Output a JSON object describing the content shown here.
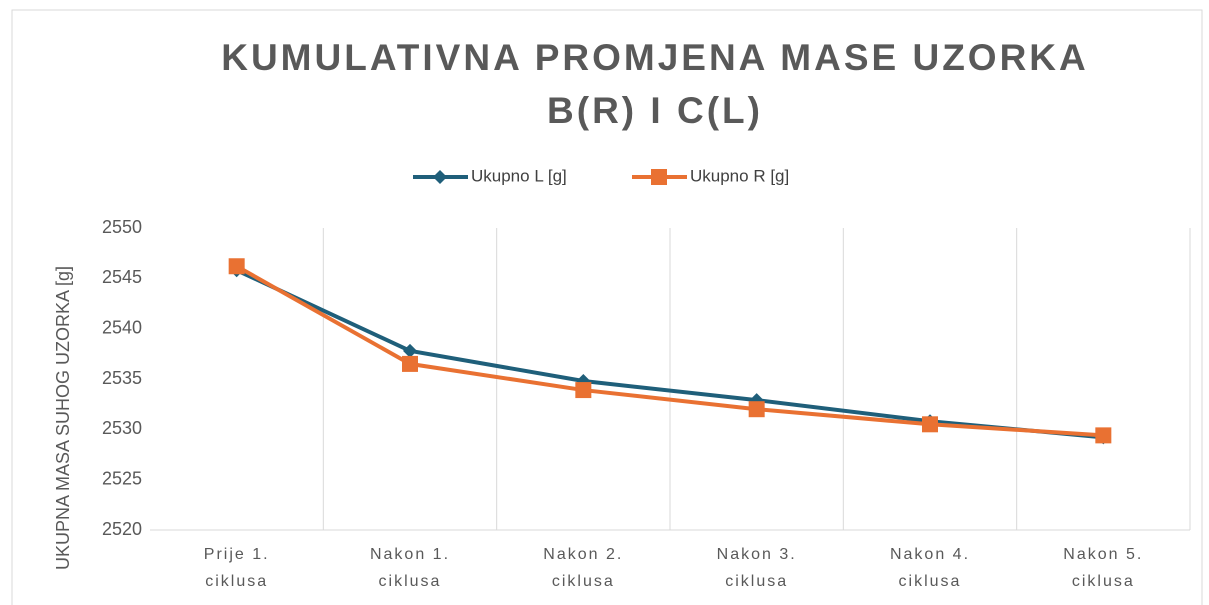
{
  "chart_data": {
    "type": "line",
    "title": [
      "KUMULATIVNA PROMJENA MASE UZORKA",
      "B(R) I C(L)"
    ],
    "y_label": "UKUPNA MASA SUHOG UZORKA [g]",
    "categories": [
      "Prije 1. ciklusa",
      "Nakon 1. ciklusa",
      "Nakon 2. ciklusa",
      "Nakon 3. ciklusa",
      "Nakon 4. ciklusa",
      "Nakon 5. ciklusa"
    ],
    "series": [
      {
        "name": "Ukupno L [g]",
        "color": "#1f5f7a",
        "marker": "diamond",
        "values": [
          2545.8,
          2537.8,
          2534.8,
          2532.9,
          2530.8,
          2529.2
        ]
      },
      {
        "name": "Ukupno R [g]",
        "color": "#e97132",
        "marker": "square",
        "values": [
          2546.2,
          2536.5,
          2533.9,
          2532.0,
          2530.5,
          2529.4
        ]
      }
    ],
    "ylim": [
      2520,
      2550
    ],
    "yticks": [
      2520,
      2525,
      2530,
      2535,
      2540,
      2545,
      2550
    ],
    "grid": "vertical",
    "legend": "top"
  }
}
